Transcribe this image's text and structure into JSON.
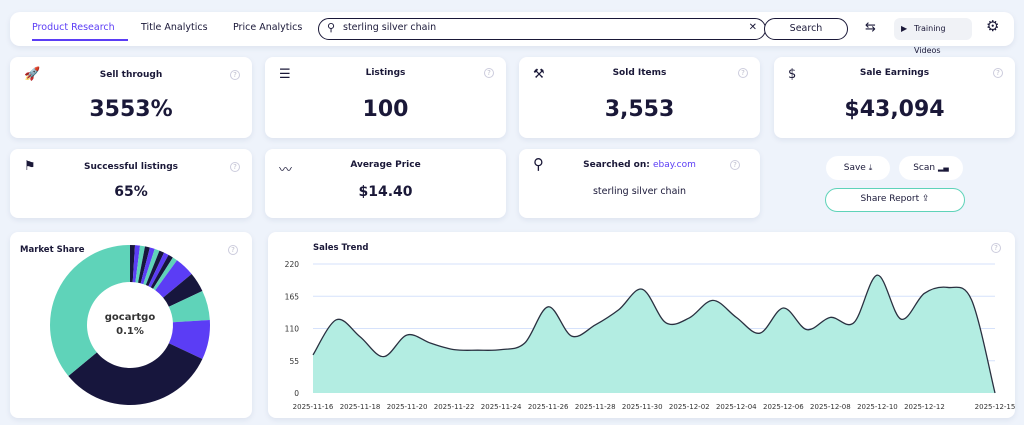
{
  "nav": {
    "tabs": [
      "Product Research",
      "Title Analytics",
      "Price Analytics"
    ],
    "active_tab": "Product Research",
    "search_value": "sterling silver chain",
    "search_button": "Search",
    "training_videos": "Training Videos"
  },
  "cards": {
    "sell_through": {
      "title": "Sell through",
      "value": "3553%",
      "icon": "rocket-icon"
    },
    "listings": {
      "title": "Listings",
      "value": "100",
      "icon": "list-icon"
    },
    "sold_items": {
      "title": "Sold Items",
      "value": "3,553",
      "icon": "gavel-icon"
    },
    "sale_earnings": {
      "title": "Sale Earnings",
      "value": "$43,094",
      "icon": "dollar-circle-icon"
    },
    "successful_listings": {
      "title": "Successful listings",
      "value": "65%",
      "icon": "flag-icon"
    },
    "average_price": {
      "title": "Average Price",
      "value": "$14.40",
      "icon": "trend-icon"
    },
    "searched_on": {
      "title": "Searched on:",
      "site": "ebay.com",
      "query": "sterling silver chain",
      "icon": "search-icon"
    }
  },
  "actions": {
    "save": "Save",
    "scan": "Scan",
    "share": "Share Report"
  },
  "colors": {
    "accent": "#5b3df5",
    "teal": "#5fd3b9",
    "navy": "#17163d",
    "fill": "#b3ede2"
  },
  "chart_data": [
    {
      "type": "pie",
      "title": "Market Share",
      "center_label": "gocartgo",
      "center_value": "0.1%",
      "values": [
        1,
        1,
        1,
        1,
        1,
        1,
        1,
        1,
        1,
        1,
        4,
        4,
        6,
        8,
        32,
        36
      ],
      "colors": [
        "#17163d",
        "#5b3df5",
        "#5fd3b9",
        "#17163d",
        "#5b3df5",
        "#5fd3b9",
        "#17163d",
        "#5b3df5",
        "#17163d",
        "#5fd3b9",
        "#5b3df5",
        "#17163d",
        "#5fd3b9",
        "#5b3df5",
        "#17163d",
        "#5fd3b9"
      ]
    },
    {
      "type": "area",
      "title": "Sales Trend",
      "ylim": [
        0,
        220
      ],
      "yticks": [
        0,
        55,
        110,
        165,
        220
      ],
      "grid": true,
      "xticks": [
        "2025-11-16",
        "2025-11-18",
        "2025-11-20",
        "2025-11-22",
        "2025-11-24",
        "2025-11-26",
        "2025-11-28",
        "2025-11-30",
        "2025-12-02",
        "2025-12-04",
        "2025-12-06",
        "2025-12-08",
        "2025-12-10",
        "2025-12-12",
        "2025-12-15"
      ],
      "x_start": "2025-11-16",
      "x_end": "2025-12-15",
      "values": [
        65,
        125,
        96,
        62,
        99,
        85,
        74,
        73,
        74,
        85,
        147,
        97,
        116,
        142,
        177,
        120,
        128,
        158,
        129,
        102,
        145,
        108,
        129,
        120,
        201,
        126,
        170,
        180,
        159,
        0
      ]
    }
  ]
}
